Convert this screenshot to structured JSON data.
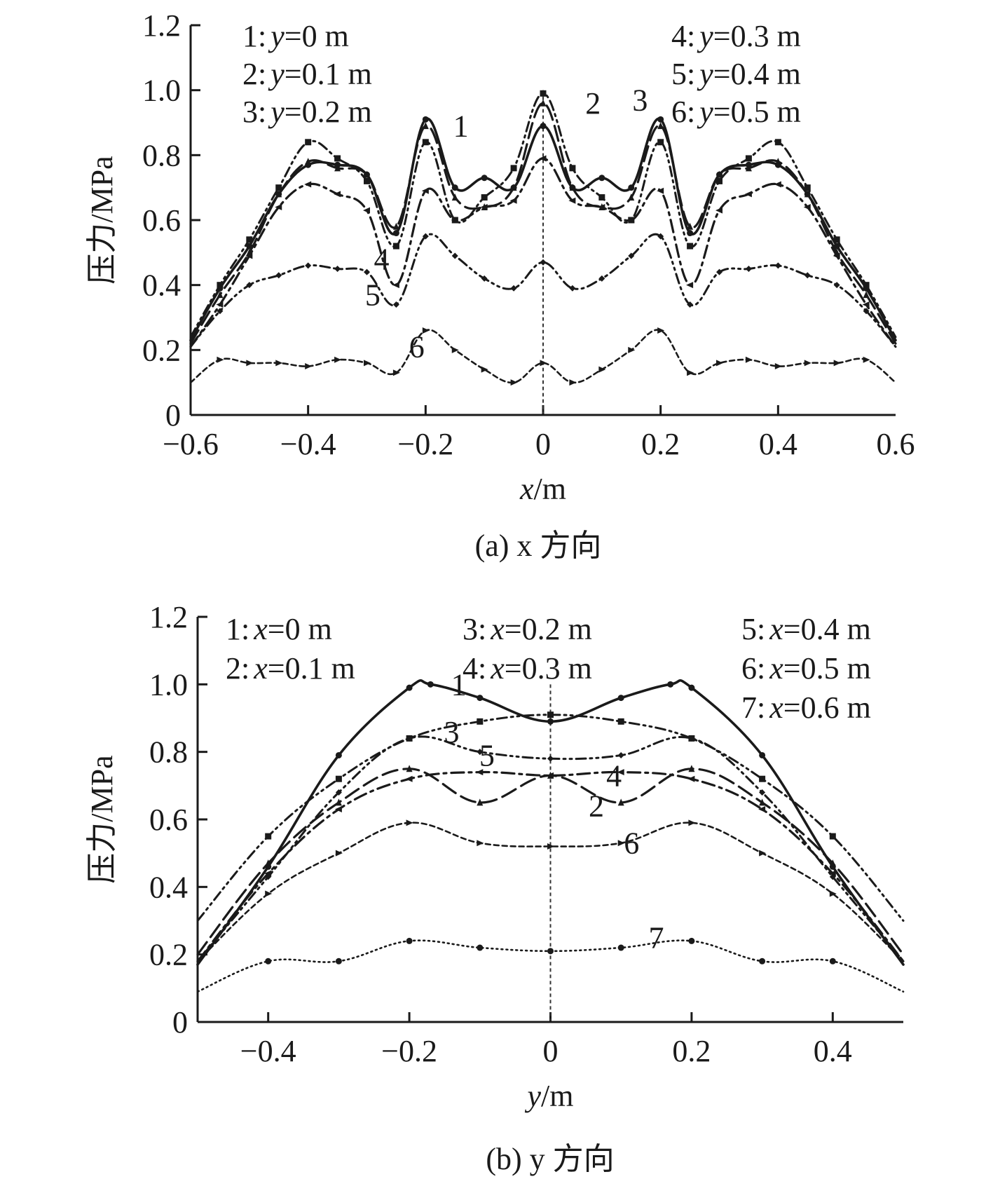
{
  "chart_data": [
    {
      "type": "line",
      "caption": "(a) x 方向",
      "xlabel": "x/m",
      "ylabel": "压力/MPa",
      "xlim": [
        -0.6,
        0.6
      ],
      "ylim": [
        0,
        1.2
      ],
      "xticks": [
        -0.6,
        -0.4,
        -0.2,
        0,
        0.2,
        0.4,
        0.6
      ],
      "xtick_labels": [
        "−0.6",
        "−0.4",
        "−0.2",
        "0",
        "0.2",
        "0.4",
        "0.6"
      ],
      "yticks": [
        0,
        0.2,
        0.4,
        0.6,
        0.8,
        1.0,
        1.2
      ],
      "ytick_labels": [
        "0",
        "0.2",
        "0.4",
        "0.6",
        "0.8",
        "1.0",
        "1.2"
      ],
      "center_line_x": 0,
      "legend": [
        {
          "num": "1:",
          "var": "y",
          "rest": "=0 m"
        },
        {
          "num": "2:",
          "var": "y",
          "rest": "=0.1 m"
        },
        {
          "num": "3:",
          "var": "y",
          "rest": "=0.2 m"
        },
        {
          "num": "4:",
          "var": "y",
          "rest": "=0.3 m"
        },
        {
          "num": "5:",
          "var": "y",
          "rest": "=0.4 m"
        },
        {
          "num": "6:",
          "var": "y",
          "rest": "=0.5 m"
        }
      ],
      "series": [
        {
          "name": "1",
          "style": "solid",
          "x": [
            -0.6,
            -0.55,
            -0.5,
            -0.45,
            -0.4,
            -0.35,
            -0.3,
            -0.25,
            -0.2,
            -0.15,
            -0.1,
            -0.05,
            0,
            0.05,
            0.1,
            0.15,
            0.2,
            0.25,
            0.3,
            0.35,
            0.4,
            0.45,
            0.5,
            0.55,
            0.6
          ],
          "y": [
            0.23,
            0.39,
            0.52,
            0.68,
            0.77,
            0.77,
            0.74,
            0.56,
            0.91,
            0.7,
            0.73,
            0.7,
            0.89,
            0.7,
            0.73,
            0.7,
            0.91,
            0.56,
            0.74,
            0.77,
            0.77,
            0.68,
            0.52,
            0.39,
            0.23
          ]
        },
        {
          "name": "2",
          "style": "dash",
          "x": [
            -0.6,
            -0.55,
            -0.5,
            -0.45,
            -0.4,
            -0.35,
            -0.3,
            -0.25,
            -0.2,
            -0.15,
            -0.1,
            -0.05,
            0,
            0.05,
            0.1,
            0.15,
            0.2,
            0.25,
            0.3,
            0.35,
            0.4,
            0.45,
            0.5,
            0.55,
            0.6
          ],
          "y": [
            0.22,
            0.37,
            0.5,
            0.68,
            0.78,
            0.76,
            0.74,
            0.58,
            0.89,
            0.67,
            0.64,
            0.7,
            0.96,
            0.7,
            0.64,
            0.67,
            0.89,
            0.58,
            0.74,
            0.76,
            0.78,
            0.68,
            0.5,
            0.37,
            0.22
          ]
        },
        {
          "name": "3",
          "style": "dashdotdot",
          "x": [
            -0.6,
            -0.55,
            -0.5,
            -0.45,
            -0.4,
            -0.35,
            -0.3,
            -0.25,
            -0.2,
            -0.15,
            -0.1,
            -0.05,
            0,
            0.05,
            0.1,
            0.15,
            0.2,
            0.25,
            0.3,
            0.35,
            0.4,
            0.45,
            0.5,
            0.55,
            0.6
          ],
          "y": [
            0.24,
            0.4,
            0.54,
            0.7,
            0.84,
            0.79,
            0.72,
            0.52,
            0.84,
            0.6,
            0.67,
            0.76,
            0.99,
            0.76,
            0.67,
            0.6,
            0.84,
            0.52,
            0.72,
            0.79,
            0.84,
            0.7,
            0.54,
            0.4,
            0.24
          ]
        },
        {
          "name": "4",
          "style": "dashdot",
          "x": [
            -0.6,
            -0.55,
            -0.5,
            -0.45,
            -0.4,
            -0.35,
            -0.3,
            -0.25,
            -0.2,
            -0.15,
            -0.1,
            -0.05,
            0,
            0.05,
            0.1,
            0.15,
            0.2,
            0.25,
            0.3,
            0.35,
            0.4,
            0.45,
            0.5,
            0.55,
            0.6
          ],
          "y": [
            0.21,
            0.34,
            0.49,
            0.64,
            0.71,
            0.68,
            0.63,
            0.4,
            0.69,
            0.6,
            0.64,
            0.66,
            0.79,
            0.66,
            0.64,
            0.6,
            0.69,
            0.4,
            0.63,
            0.68,
            0.71,
            0.64,
            0.49,
            0.34,
            0.21
          ]
        },
        {
          "name": "5",
          "style": "dashdotdot",
          "x": [
            -0.6,
            -0.55,
            -0.5,
            -0.45,
            -0.4,
            -0.35,
            -0.3,
            -0.25,
            -0.2,
            -0.15,
            -0.1,
            -0.05,
            0,
            0.05,
            0.1,
            0.15,
            0.2,
            0.25,
            0.3,
            0.35,
            0.4,
            0.45,
            0.5,
            0.55,
            0.6
          ],
          "y": [
            0.21,
            0.32,
            0.4,
            0.43,
            0.46,
            0.45,
            0.44,
            0.34,
            0.55,
            0.49,
            0.42,
            0.39,
            0.47,
            0.39,
            0.42,
            0.49,
            0.55,
            0.34,
            0.44,
            0.45,
            0.46,
            0.43,
            0.4,
            0.32,
            0.21
          ]
        },
        {
          "name": "6",
          "style": "dash-short",
          "x": [
            -0.6,
            -0.55,
            -0.5,
            -0.45,
            -0.4,
            -0.35,
            -0.3,
            -0.25,
            -0.2,
            -0.15,
            -0.1,
            -0.05,
            0,
            0.05,
            0.1,
            0.15,
            0.2,
            0.25,
            0.3,
            0.35,
            0.4,
            0.45,
            0.5,
            0.55,
            0.6
          ],
          "y": [
            0.1,
            0.17,
            0.16,
            0.16,
            0.15,
            0.17,
            0.16,
            0.13,
            0.26,
            0.2,
            0.14,
            0.1,
            0.16,
            0.1,
            0.14,
            0.2,
            0.26,
            0.13,
            0.16,
            0.17,
            0.15,
            0.16,
            0.16,
            0.17,
            0.1
          ]
        }
      ],
      "curve_labels": [
        {
          "text": "1",
          "x": -0.14,
          "y": 0.89
        },
        {
          "text": "2",
          "x": 0.085,
          "y": 0.96
        },
        {
          "text": "3",
          "x": 0.165,
          "y": 0.97
        },
        {
          "text": "4",
          "x": -0.275,
          "y": 0.48
        },
        {
          "text": "5",
          "x": -0.29,
          "y": 0.37
        },
        {
          "text": "6",
          "x": -0.215,
          "y": 0.21
        }
      ]
    },
    {
      "type": "line",
      "caption": "(b) y 方向",
      "xlabel": "y/m",
      "ylabel": "压力/MPa",
      "xlim": [
        -0.5,
        0.5
      ],
      "ylim": [
        0,
        1.2
      ],
      "xticks": [
        -0.4,
        -0.2,
        0,
        0.2,
        0.4
      ],
      "xtick_labels": [
        "−0.4",
        "−0.2",
        "0",
        "0.2",
        "0.4"
      ],
      "yticks": [
        0,
        0.2,
        0.4,
        0.6,
        0.8,
        1.0,
        1.2
      ],
      "ytick_labels": [
        "0",
        "0.2",
        "0.4",
        "0.6",
        "0.8",
        "1.0",
        "1.2"
      ],
      "center_line_x": 0,
      "legend": [
        {
          "num": "1:",
          "var": "x",
          "rest": "=0 m"
        },
        {
          "num": "2:",
          "var": "x",
          "rest": "=0.1 m"
        },
        {
          "num": "3:",
          "var": "x",
          "rest": "=0.2 m"
        },
        {
          "num": "4:",
          "var": "x",
          "rest": "=0.3 m"
        },
        {
          "num": "5:",
          "var": "x",
          "rest": "=0.4 m"
        },
        {
          "num": "6:",
          "var": "x",
          "rest": "=0.5 m"
        },
        {
          "num": "7:",
          "var": "x",
          "rest": "=0.6 m"
        }
      ],
      "series": [
        {
          "name": "1",
          "style": "solid",
          "x": [
            -0.5,
            -0.4,
            -0.3,
            -0.2,
            -0.17,
            -0.1,
            0,
            0.1,
            0.17,
            0.2,
            0.3,
            0.4,
            0.5
          ],
          "y": [
            0.17,
            0.46,
            0.79,
            0.99,
            1.0,
            0.96,
            0.89,
            0.96,
            1.0,
            0.99,
            0.79,
            0.46,
            0.17
          ]
        },
        {
          "name": "2",
          "style": "dash",
          "x": [
            -0.5,
            -0.4,
            -0.3,
            -0.2,
            -0.1,
            0,
            0.1,
            0.2,
            0.3,
            0.4,
            0.5
          ],
          "y": [
            0.2,
            0.47,
            0.65,
            0.75,
            0.65,
            0.73,
            0.65,
            0.75,
            0.65,
            0.47,
            0.2
          ]
        },
        {
          "name": "3",
          "style": "dashdotdot",
          "x": [
            -0.5,
            -0.4,
            -0.3,
            -0.2,
            -0.1,
            0,
            0.1,
            0.2,
            0.3,
            0.4,
            0.5
          ],
          "y": [
            0.3,
            0.55,
            0.72,
            0.84,
            0.89,
            0.91,
            0.89,
            0.84,
            0.72,
            0.55,
            0.3
          ]
        },
        {
          "name": "4",
          "style": "dashdot",
          "x": [
            -0.5,
            -0.4,
            -0.3,
            -0.2,
            -0.1,
            0,
            0.1,
            0.2,
            0.3,
            0.4,
            0.5
          ],
          "y": [
            0.18,
            0.44,
            0.63,
            0.72,
            0.74,
            0.73,
            0.74,
            0.72,
            0.63,
            0.44,
            0.18
          ]
        },
        {
          "name": "5",
          "style": "dashdotdot",
          "x": [
            -0.5,
            -0.4,
            -0.3,
            -0.2,
            -0.1,
            0,
            0.1,
            0.2,
            0.3,
            0.4,
            0.5
          ],
          "y": [
            0.18,
            0.43,
            0.68,
            0.84,
            0.8,
            0.78,
            0.79,
            0.84,
            0.68,
            0.43,
            0.18
          ]
        },
        {
          "name": "6",
          "style": "dash-short",
          "x": [
            -0.5,
            -0.4,
            -0.3,
            -0.2,
            -0.1,
            0,
            0.1,
            0.2,
            0.3,
            0.4,
            0.5
          ],
          "y": [
            0.18,
            0.38,
            0.5,
            0.59,
            0.53,
            0.52,
            0.53,
            0.59,
            0.5,
            0.38,
            0.18
          ]
        },
        {
          "name": "7",
          "style": "dotted",
          "x": [
            -0.5,
            -0.4,
            -0.3,
            -0.2,
            -0.1,
            0,
            0.1,
            0.2,
            0.3,
            0.4,
            0.5
          ],
          "y": [
            0.09,
            0.18,
            0.18,
            0.24,
            0.22,
            0.21,
            0.22,
            0.24,
            0.18,
            0.18,
            0.09
          ]
        }
      ],
      "curve_labels": [
        {
          "text": "1",
          "x": -0.13,
          "y": 1.0
        },
        {
          "text": "3",
          "x": -0.14,
          "y": 0.86
        },
        {
          "text": "5",
          "x": -0.09,
          "y": 0.79
        },
        {
          "text": "4",
          "x": 0.09,
          "y": 0.73
        },
        {
          "text": "2",
          "x": 0.065,
          "y": 0.64
        },
        {
          "text": "6",
          "x": 0.115,
          "y": 0.53
        },
        {
          "text": "7",
          "x": 0.15,
          "y": 0.25
        }
      ]
    }
  ]
}
